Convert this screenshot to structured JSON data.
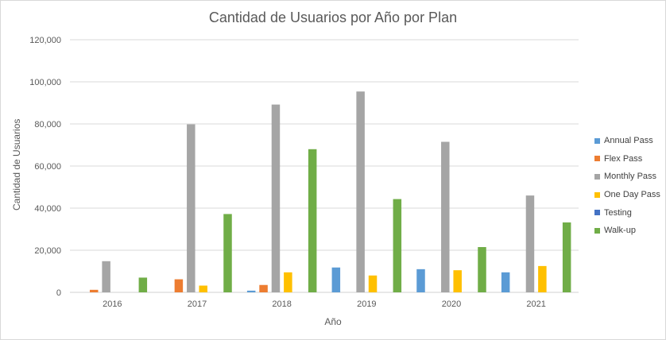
{
  "chart_data": {
    "type": "bar",
    "title": "Cantidad de Usuarios por Año por Plan",
    "xlabel": "Año",
    "ylabel": "Cantidad de Usuarios",
    "categories": [
      "2016",
      "2017",
      "2018",
      "2019",
      "2020",
      "2021"
    ],
    "ylim": [
      0,
      120000
    ],
    "yticks": [
      0,
      20000,
      40000,
      60000,
      80000,
      100000,
      120000
    ],
    "ytick_labels": [
      "0",
      "20,000",
      "40,000",
      "60,000",
      "80,000",
      "100,000",
      "120,000"
    ],
    "grid": true,
    "legend_position": "right",
    "series": [
      {
        "name": "Annual Pass",
        "color": "#5b9bd5",
        "values": [
          0,
          0,
          800,
          11800,
          11000,
          9500
        ]
      },
      {
        "name": "Flex Pass",
        "color": "#ed7d31",
        "values": [
          1200,
          6200,
          3500,
          0,
          0,
          0
        ]
      },
      {
        "name": "Monthly Pass",
        "color": "#a5a5a5",
        "values": [
          14800,
          79800,
          89200,
          95400,
          71500,
          46000
        ]
      },
      {
        "name": "One Day Pass",
        "color": "#ffc000",
        "values": [
          0,
          3200,
          9500,
          8000,
          10500,
          12500
        ]
      },
      {
        "name": "Testing",
        "color": "#4472c4",
        "values": [
          0,
          0,
          0,
          0,
          0,
          0
        ]
      },
      {
        "name": "Walk-up",
        "color": "#70ad47",
        "values": [
          7000,
          37200,
          68000,
          44300,
          21500,
          33200
        ]
      }
    ]
  }
}
